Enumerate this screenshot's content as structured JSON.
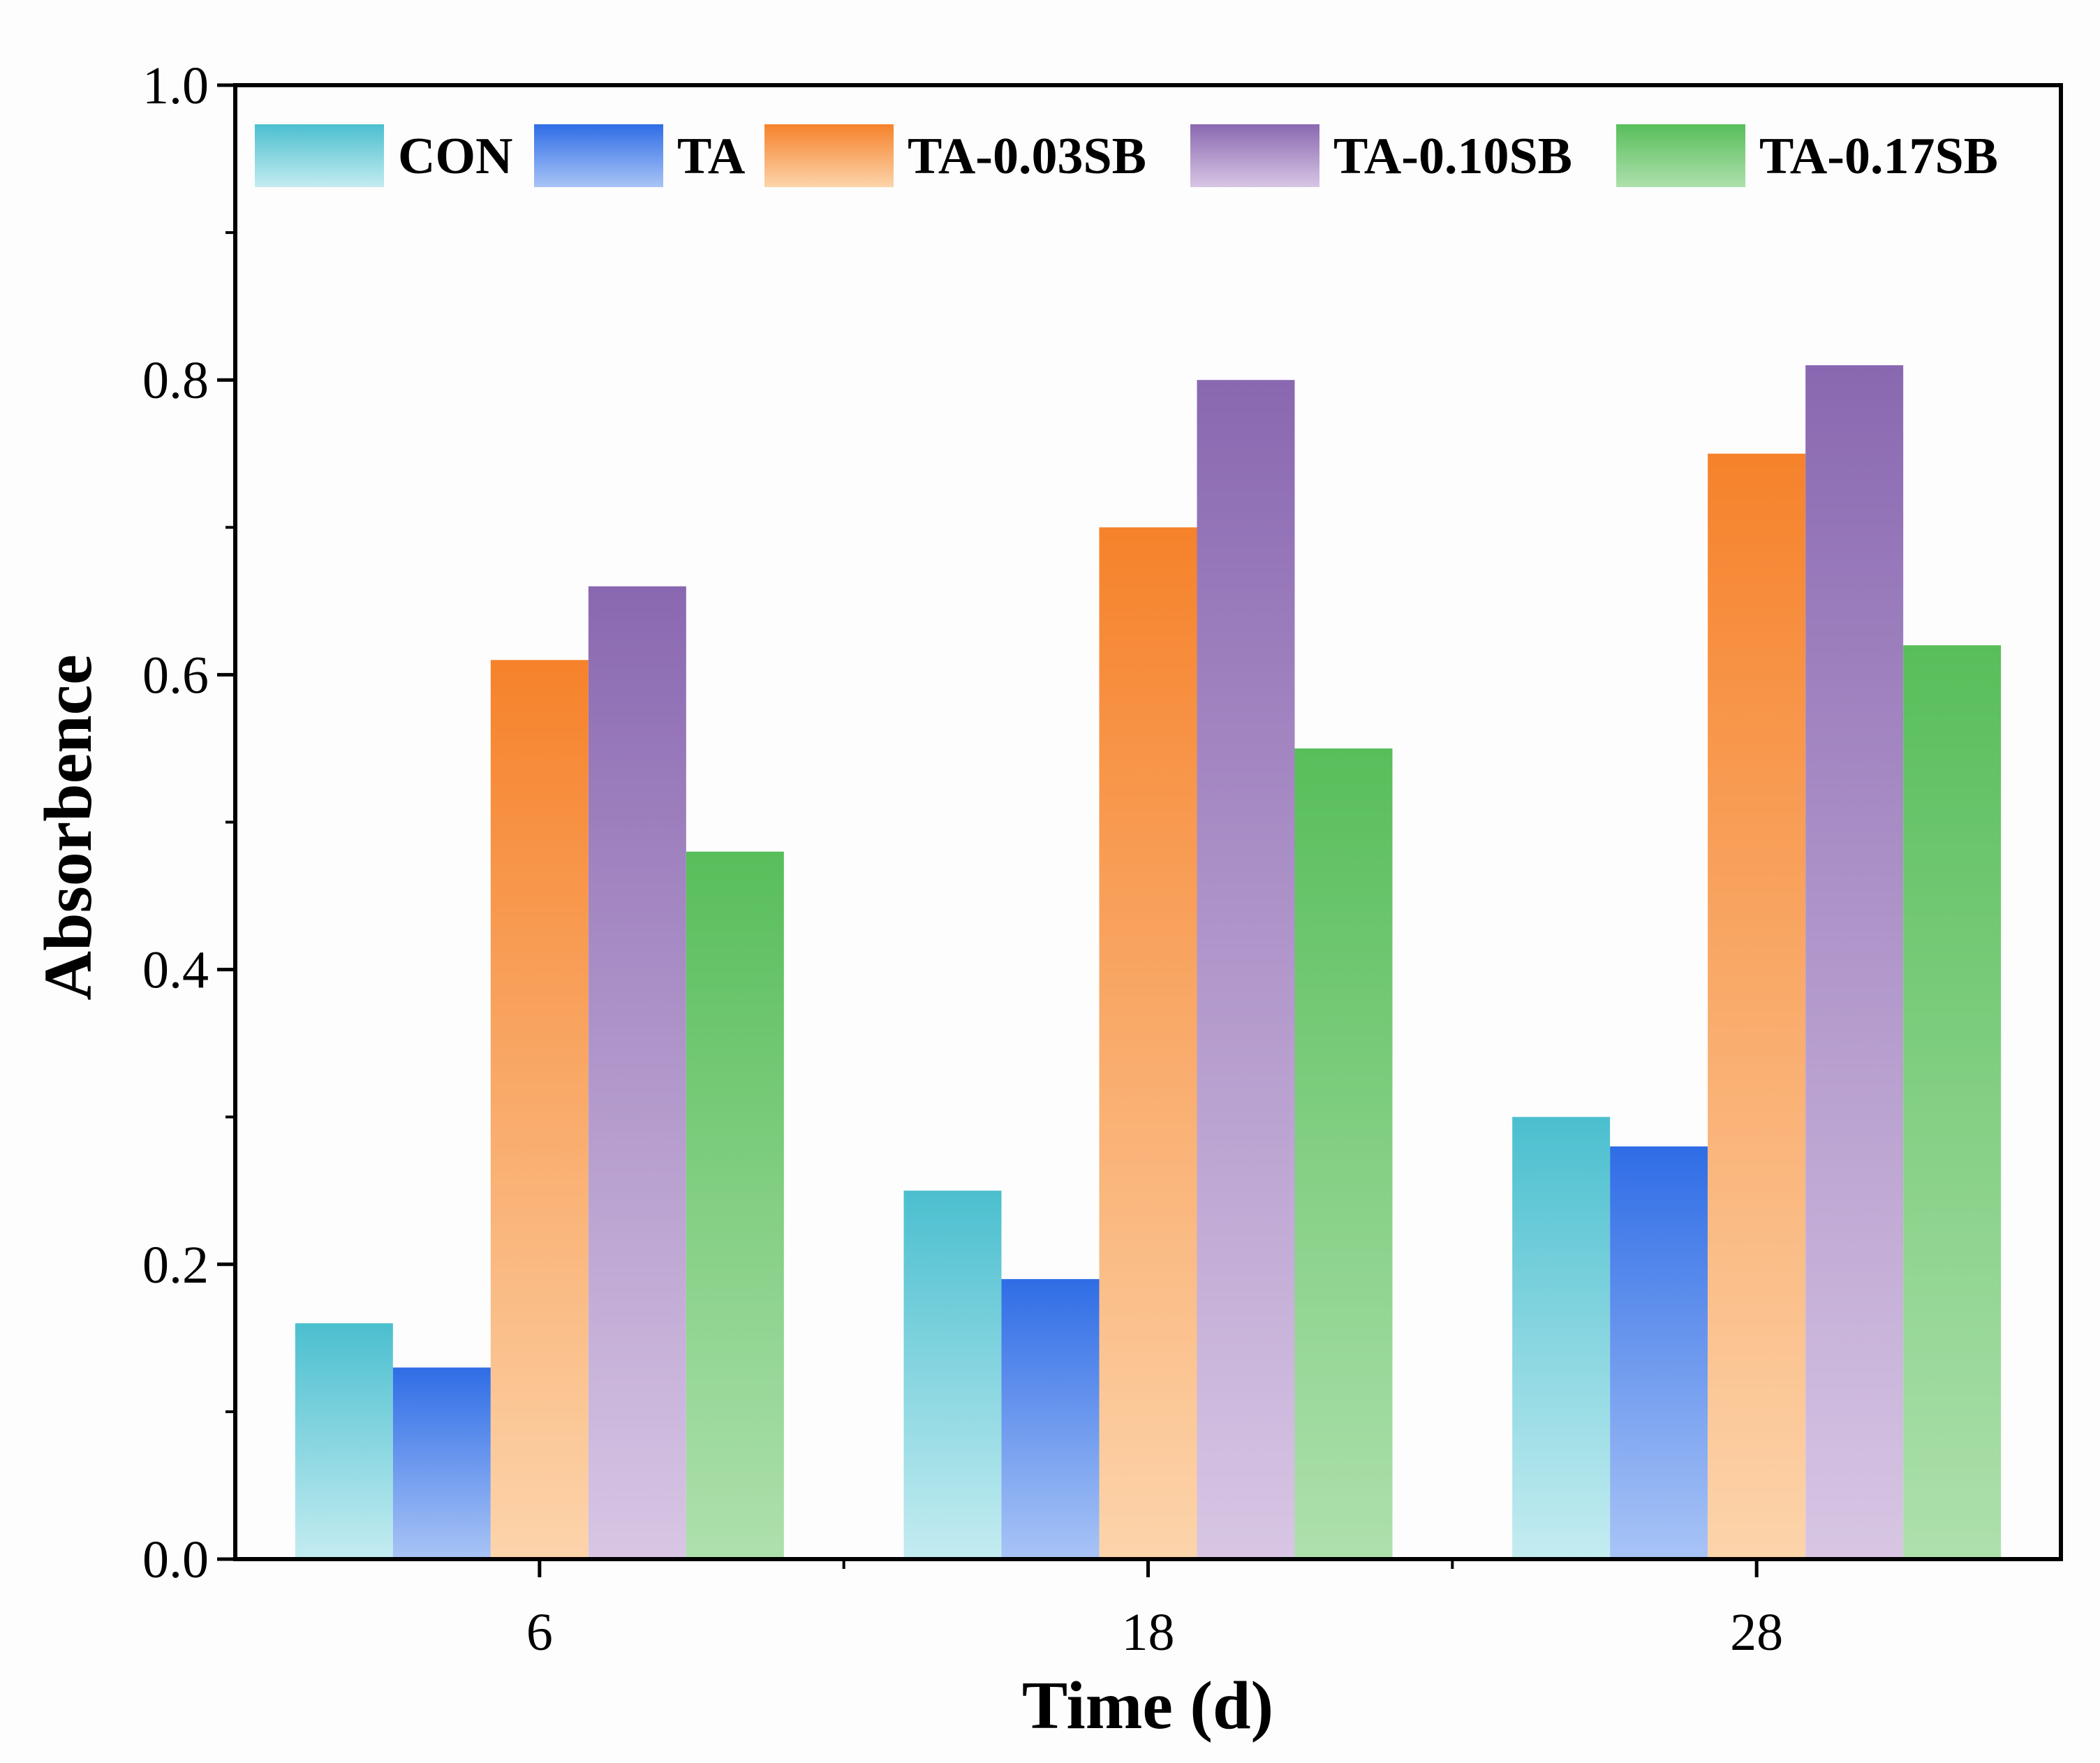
{
  "chart_data": {
    "type": "bar",
    "title": "",
    "xlabel": "Time (d)",
    "ylabel": "Absorbence",
    "categories": [
      "6",
      "18",
      "28"
    ],
    "ylim": [
      0,
      1.0
    ],
    "yticks": [
      "0.0",
      "0.2",
      "0.4",
      "0.6",
      "0.8",
      "1.0"
    ],
    "legend_position": "top",
    "grid": false,
    "series": [
      {
        "name": "CON",
        "values": [
          0.16,
          0.25,
          0.3
        ],
        "color_top": "#4bbfcf",
        "color_bottom": "#c4ecf1"
      },
      {
        "name": "TA",
        "values": [
          0.13,
          0.19,
          0.28
        ],
        "color_top": "#2f6de6",
        "color_bottom": "#a9c4f6"
      },
      {
        "name": "TA-0.03SB",
        "values": [
          0.61,
          0.7,
          0.75
        ],
        "color_top": "#f6822b",
        "color_bottom": "#fcd4ab"
      },
      {
        "name": "TA-0.10SB",
        "values": [
          0.66,
          0.8,
          0.81
        ],
        "color_top": "#8a68b1",
        "color_bottom": "#d8c6e4"
      },
      {
        "name": "TA-0.17SB",
        "values": [
          0.48,
          0.55,
          0.62
        ],
        "color_top": "#58be5a",
        "color_bottom": "#aee0ad"
      }
    ]
  }
}
